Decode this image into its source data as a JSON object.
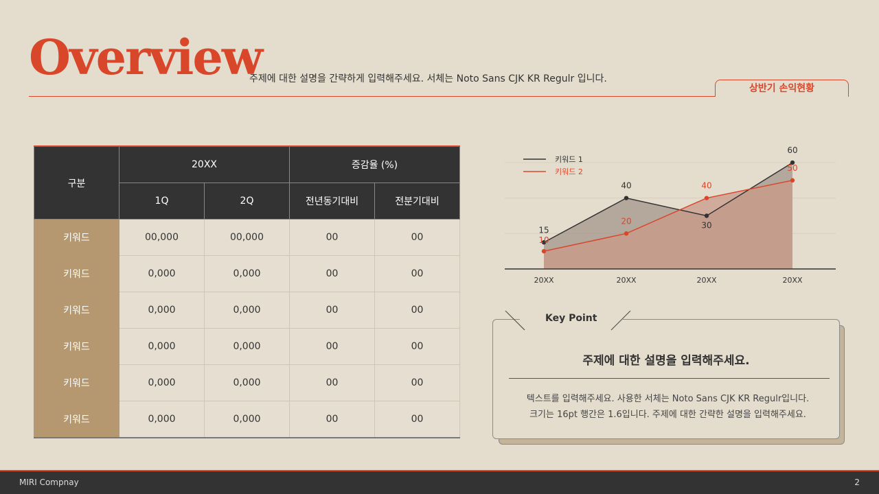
{
  "header": {
    "title": "Overview",
    "subtitle": "주제에 대한 설명을 간략하게 입력해주세요. 서체는 Noto Sans CJK KR Regulr 입니다.",
    "tab_label": "상반기 손익현황"
  },
  "table": {
    "corner_header": "구분",
    "group_headers": [
      "20XX",
      "증감율 (%)"
    ],
    "sub_headers": [
      "1Q",
      "2Q",
      "전년동기대비",
      "전분기대비"
    ],
    "rows": [
      {
        "label": "키워드",
        "cells": [
          "00,000",
          "00,000",
          "00",
          "00"
        ]
      },
      {
        "label": "키워드",
        "cells": [
          "0,000",
          "0,000",
          "00",
          "00"
        ]
      },
      {
        "label": "키워드",
        "cells": [
          "0,000",
          "0,000",
          "00",
          "00"
        ]
      },
      {
        "label": "키워드",
        "cells": [
          "0,000",
          "0,000",
          "00",
          "00"
        ]
      },
      {
        "label": "키워드",
        "cells": [
          "0,000",
          "0,000",
          "00",
          "00"
        ]
      },
      {
        "label": "키워드",
        "cells": [
          "0,000",
          "0,000",
          "00",
          "00"
        ]
      }
    ]
  },
  "chart_data": {
    "type": "area",
    "categories": [
      "20XX",
      "20XX",
      "20XX",
      "20XX"
    ],
    "series": [
      {
        "name": "키워드 1",
        "values": [
          15,
          40,
          30,
          60
        ],
        "color": "#333333"
      },
      {
        "name": "키워드 2",
        "values": [
          10,
          20,
          40,
          50
        ],
        "color": "#d9472b"
      }
    ],
    "ylim": [
      0,
      60
    ],
    "legend": "top-left",
    "grid": true
  },
  "key_point": {
    "label": "Key Point",
    "heading": "주제에 대한 설명을 입력해주세요.",
    "body_line1": "텍스트를 입력해주세요. 사용한 서체는 Noto Sans CJK KR Regulr입니다.",
    "body_line2": "크기는 16pt 행간은 1.6입니다. 주제에 대한 간략한 설명을 입력해주세요."
  },
  "footer": {
    "company": "MIRI Compnay",
    "page_number": "2"
  }
}
